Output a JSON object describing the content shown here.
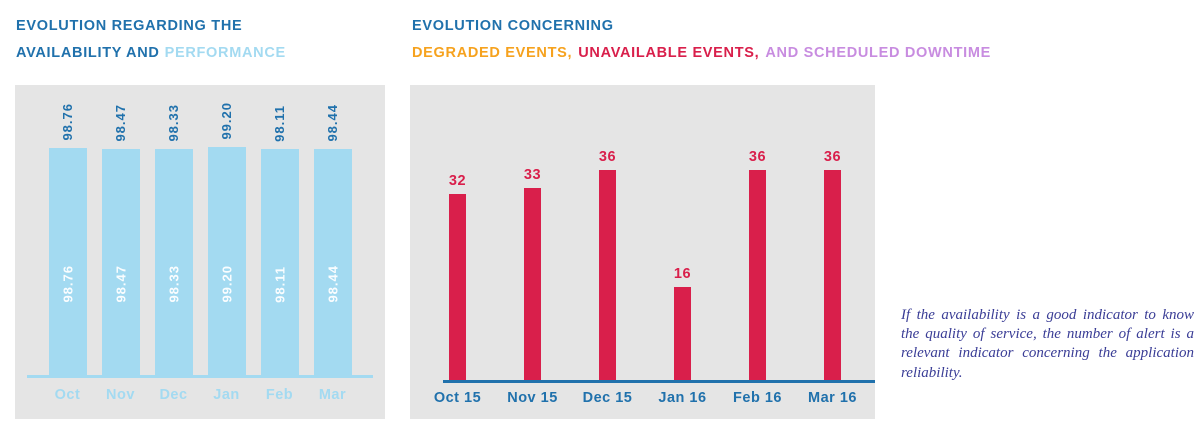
{
  "colors": {
    "primary_blue": "#2071AC",
    "light_blue": "#A3DAF1",
    "orange": "#F6A21E",
    "red": "#D91F4B",
    "purple": "#C88CE0",
    "panel_gray": "#E5E5E5",
    "annotation_indigo": "#3A3D96"
  },
  "header": {
    "left": {
      "line1": "EVOLUTION REGARDING THE",
      "line2_dark": "AVAILABILITY AND",
      "line2_light": "PERFORMANCE"
    },
    "right": {
      "line1": "EVOLUTION CONCERNING",
      "seg_orange": "DEGRADED EVENTS,",
      "seg_red": "UNAVAILABLE EVENTS,",
      "seg_purple": "AND SCHEDULED DOWNTIME"
    }
  },
  "annotation": "If the availability is a good indicator to know the quality of service, the number of alert is a relevant indicator concerning the application reliability.",
  "chart_data": [
    {
      "type": "bar",
      "title": "Evolution regarding the availability and performance",
      "categories": [
        "Oct",
        "Nov",
        "Dec",
        "Jan",
        "Feb",
        "Mar"
      ],
      "values": [
        98.76,
        98.47,
        98.33,
        99.2,
        98.11,
        98.44
      ],
      "value_format": "2dp",
      "ylim": [
        0,
        100
      ],
      "bar_color": "#A3DAF1",
      "value_label_color": "#2071AC",
      "inner_label_color": "#FFFFFF",
      "axis_line_color": "#A3DAF1",
      "category_label_color": "#A3DAF1",
      "grid": false,
      "legend": "none"
    },
    {
      "type": "bar",
      "title": "Evolution concerning degraded events, unavailable events, and scheduled downtime",
      "categories": [
        "Oct 15",
        "Nov 15",
        "Dec 15",
        "Jan 16",
        "Feb 16",
        "Mar 16"
      ],
      "values": [
        32,
        33,
        36,
        16,
        36,
        36
      ],
      "value_format": "int",
      "ylim": [
        0,
        40
      ],
      "bar_color": "#D91F4B",
      "value_label_color": "#D91F4B",
      "axis_line_color": "#2071AC",
      "category_label_color": "#2071AC",
      "grid": false,
      "legend": "none"
    }
  ]
}
